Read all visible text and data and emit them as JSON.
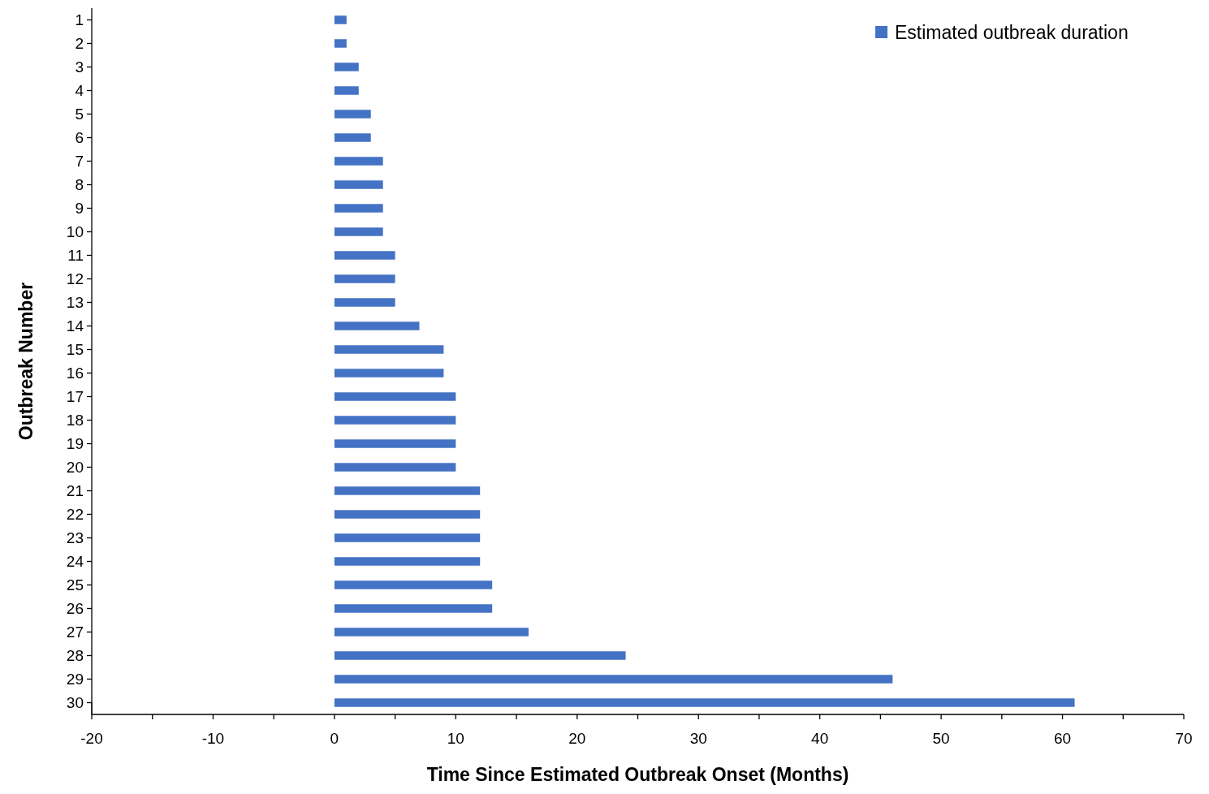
{
  "chart_data": {
    "type": "bar",
    "orientation": "horizontal",
    "xlabel": "Time Since Estimated Outbreak Onset (Months)",
    "ylabel": "Outbreak Number",
    "categories": [
      "1",
      "2",
      "3",
      "4",
      "5",
      "6",
      "7",
      "8",
      "9",
      "10",
      "11",
      "12",
      "13",
      "14",
      "15",
      "16",
      "17",
      "18",
      "19",
      "20",
      "21",
      "22",
      "23",
      "24",
      "25",
      "26",
      "27",
      "28",
      "29",
      "30"
    ],
    "series": [
      {
        "name": "Estimated outbreak duration",
        "color": "#4472c4",
        "values": [
          1,
          1,
          2,
          2,
          3,
          3,
          4,
          4,
          4,
          4,
          5,
          5,
          5,
          7,
          9,
          9,
          10,
          10,
          10,
          10,
          12,
          12,
          12,
          12,
          13,
          13,
          16,
          24,
          46,
          61
        ]
      }
    ],
    "xlim": [
      -20,
      70
    ],
    "xticks": [
      -20,
      {
        "value": -15,
        "label": null
      },
      -10,
      {
        "value": -5,
        "label": null
      },
      0,
      {
        "value": 5,
        "label": null
      },
      10,
      {
        "value": 15,
        "label": null
      },
      20,
      {
        "value": 25,
        "label": null
      },
      30,
      {
        "value": 35,
        "label": null
      },
      40,
      {
        "value": 45,
        "label": null
      },
      50,
      {
        "value": 55,
        "label": null
      },
      60,
      {
        "value": 65,
        "label": null
      },
      70
    ],
    "grid": false,
    "legend": "top right"
  }
}
